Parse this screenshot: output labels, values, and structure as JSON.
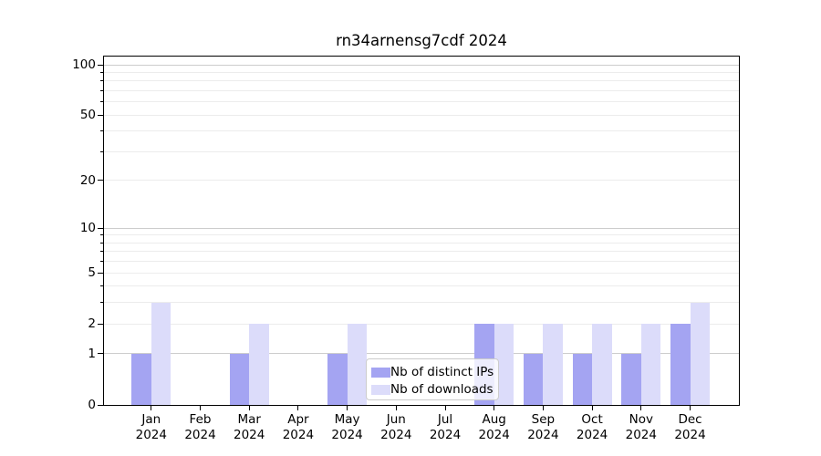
{
  "title": "rn34arnensg7cdf 2024",
  "legend": {
    "items": [
      {
        "label": "Nb of distinct IPs",
        "color": "#a4a4f2"
      },
      {
        "label": "Nb of downloads",
        "color": "#dcdcfa"
      }
    ]
  },
  "colors": {
    "series_distinct_ips": "#a4a4f2",
    "series_downloads": "#dcdcfa",
    "grid_major": "#cdcdcd",
    "grid_minor": "#ececec",
    "axis": "#000000",
    "legend_border": "#cccccc",
    "background": "#ffffff"
  },
  "chart_data": {
    "type": "bar",
    "title": "rn34arnensg7cdf 2024",
    "categories": [
      "Jan",
      "Feb",
      "Mar",
      "Apr",
      "May",
      "Jun",
      "Jul",
      "Aug",
      "Sep",
      "Oct",
      "Nov",
      "Dec"
    ],
    "x_year_label": "2024",
    "series": [
      {
        "name": "Nb of distinct IPs",
        "color": "#a4a4f2",
        "values": [
          1,
          0,
          1,
          0,
          1,
          0,
          0,
          2,
          1,
          1,
          1,
          2
        ]
      },
      {
        "name": "Nb of downloads",
        "color": "#dcdcfa",
        "values": [
          3,
          0,
          2,
          0,
          2,
          0,
          0,
          2,
          2,
          2,
          2,
          3
        ]
      }
    ],
    "xlabel": "",
    "ylabel": "",
    "yscale": "log1p",
    "ylim": [
      0,
      113
    ],
    "y_ticks": [
      {
        "value": 0,
        "label": "0"
      },
      {
        "value": 1,
        "label": "1"
      },
      {
        "value": 2,
        "label": "2"
      },
      {
        "value": 5,
        "label": "5"
      },
      {
        "value": 10,
        "label": "10"
      },
      {
        "value": 20,
        "label": "20"
      },
      {
        "value": 50,
        "label": "50"
      },
      {
        "value": 100,
        "label": "100"
      }
    ],
    "y_gridlines_major": [
      1,
      10,
      100
    ],
    "y_gridlines_minor": [
      2,
      3,
      4,
      5,
      6,
      7,
      8,
      9,
      20,
      30,
      40,
      50,
      60,
      70,
      80,
      90
    ],
    "grid": true,
    "legend_position": "lower-center-inside"
  }
}
